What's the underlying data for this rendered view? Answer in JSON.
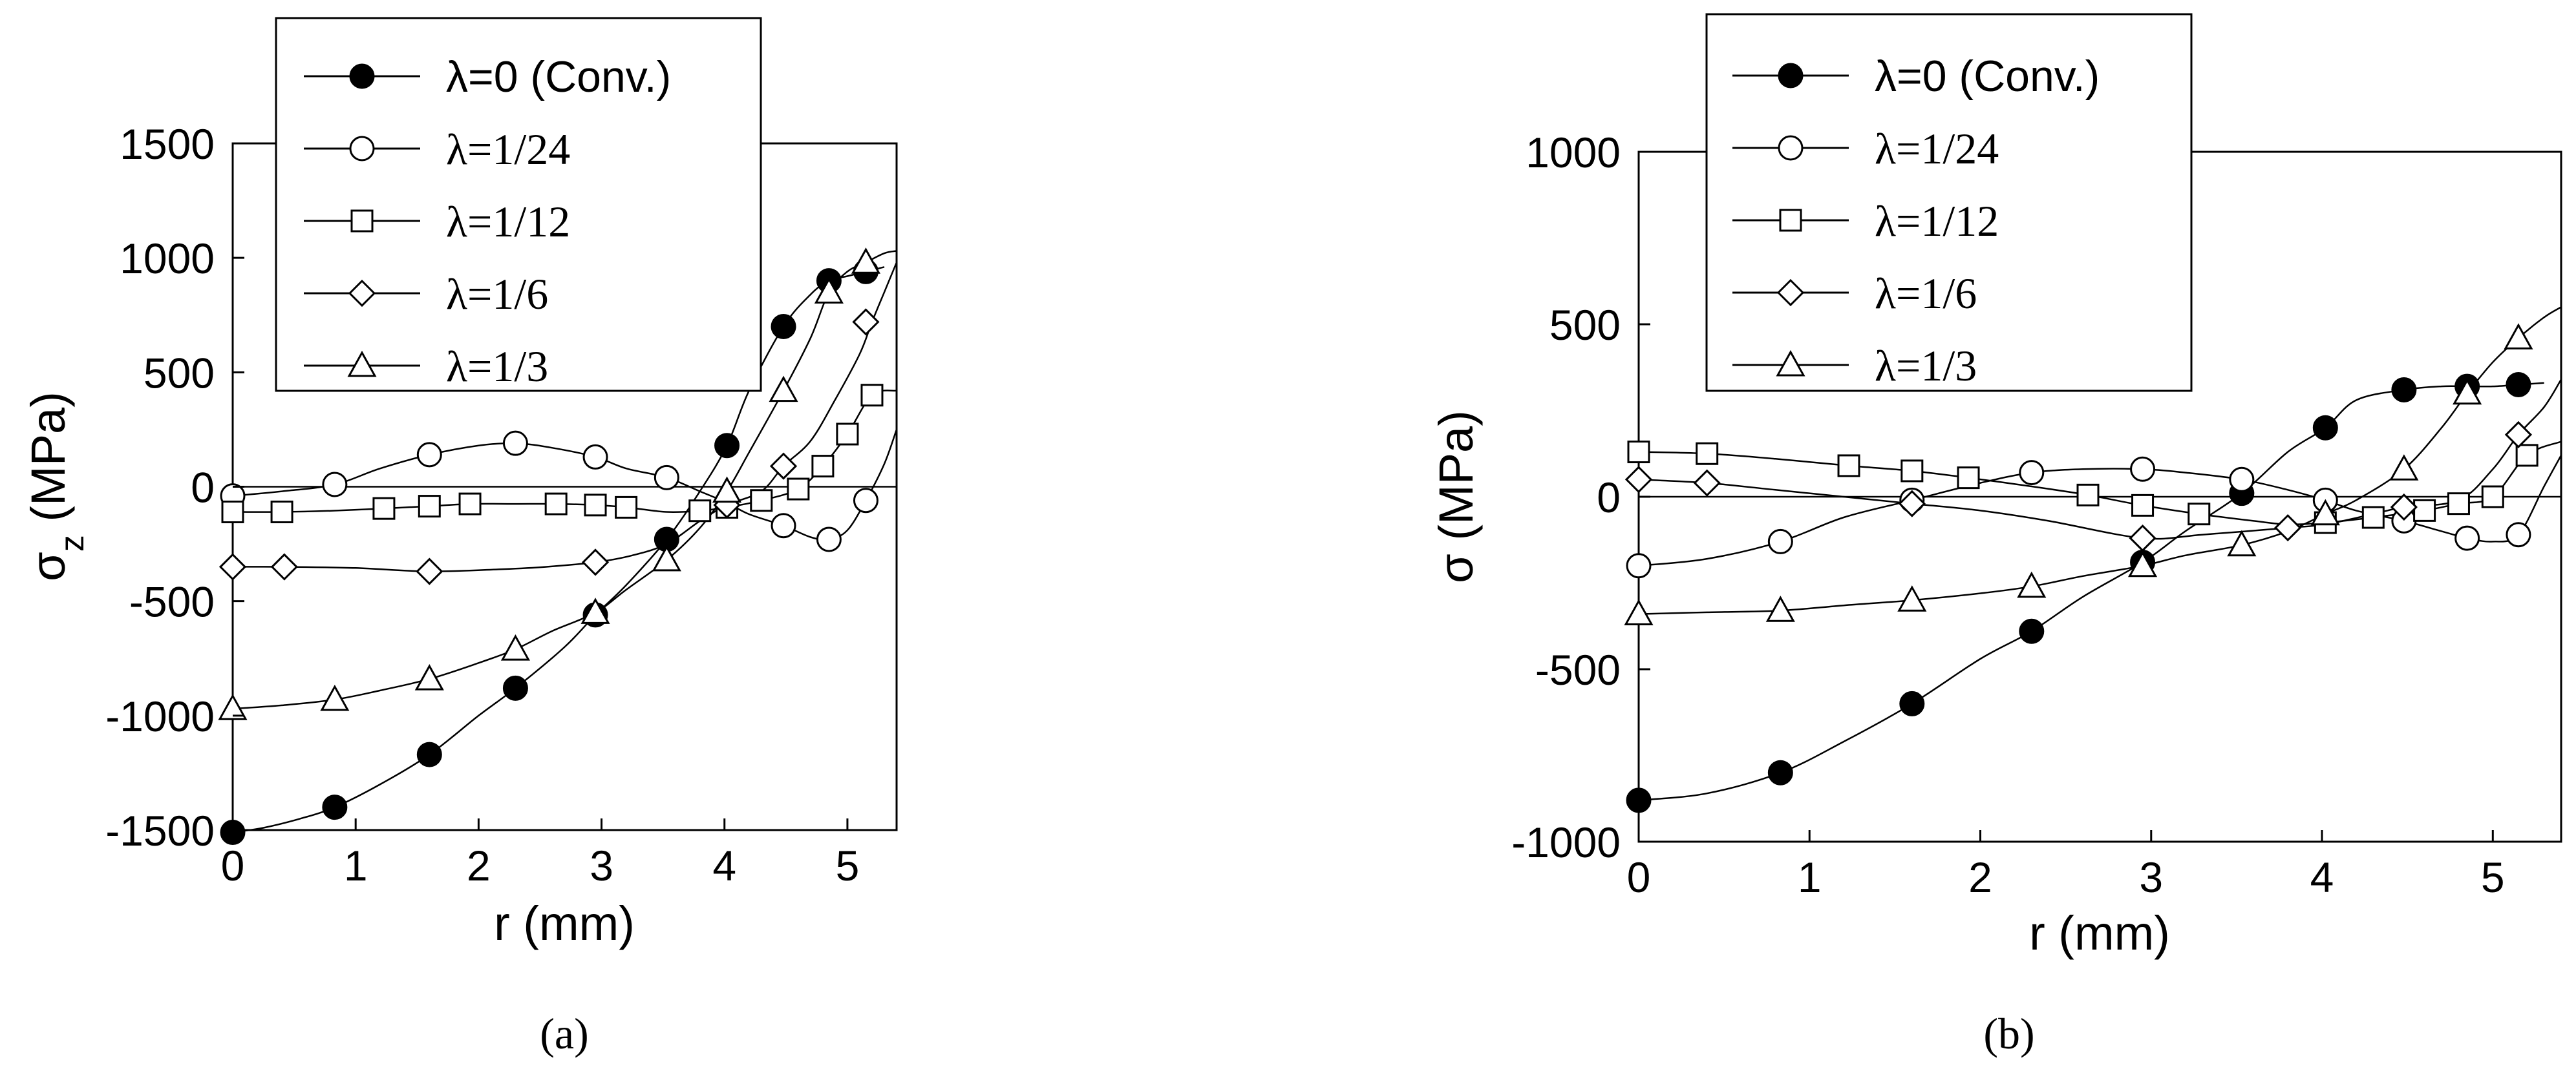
{
  "chart_data": [
    {
      "type": "line",
      "panel_label": "(a)",
      "xlabel": "r (mm)",
      "ylabel_main": "σ",
      "ylabel_sub": "z",
      "ylabel_rest": " (MPa)",
      "xlim": [
        0,
        5.4
      ],
      "ylim": [
        -1500,
        1500
      ],
      "xticks": [
        0,
        1,
        2,
        3,
        4,
        5
      ],
      "yticks": [
        -1500,
        -1000,
        -500,
        0,
        500,
        1000,
        1500
      ],
      "xtick_labels": [
        "0",
        "1",
        "2",
        "3",
        "4",
        "5"
      ],
      "ytick_labels": [
        "-1500",
        "-1000",
        "-500",
        "0",
        "500",
        "1000",
        "1500"
      ],
      "zero_line": true,
      "legend_position": "top-left",
      "series": [
        {
          "name": "λ=0 (Conv.)",
          "marker": "filled-circle",
          "x": [
            0,
            0.25,
            0.55,
            0.83,
            1.2,
            1.6,
            2.0,
            2.3,
            2.7,
            2.95,
            3.2,
            3.53,
            3.8,
            4.02,
            4.2,
            4.48,
            4.7,
            4.85,
            5.0,
            5.15,
            5.3
          ],
          "y": [
            -1510,
            -1490,
            -1450,
            -1400,
            -1300,
            -1170,
            -1000,
            -880,
            -700,
            -560,
            -430,
            -230,
            -20,
            180,
            420,
            700,
            840,
            900,
            920,
            940,
            960
          ],
          "marker_x": [
            0,
            0.83,
            1.6,
            2.3,
            2.95,
            3.53,
            4.02,
            4.48,
            4.85,
            5.15
          ],
          "marker_y": [
            -1510,
            -1400,
            -1170,
            -880,
            -560,
            -230,
            180,
            700,
            900,
            940
          ]
        },
        {
          "name": "λ=1/24",
          "marker": "open-circle",
          "x": [
            0,
            0.4,
            0.83,
            1.2,
            1.6,
            2.0,
            2.3,
            2.6,
            2.95,
            3.2,
            3.53,
            3.8,
            4.02,
            4.2,
            4.48,
            4.7,
            4.85,
            5.0,
            5.15,
            5.3,
            5.4
          ],
          "y": [
            -40,
            -20,
            10,
            80,
            140,
            180,
            190,
            170,
            130,
            80,
            40,
            -20,
            -70,
            -120,
            -170,
            -220,
            -230,
            -190,
            -60,
            100,
            250
          ],
          "marker_x": [
            0,
            0.83,
            1.6,
            2.3,
            2.95,
            3.53,
            4.48,
            4.85,
            5.15
          ],
          "marker_y": [
            -40,
            10,
            140,
            190,
            130,
            40,
            -170,
            -230,
            -60
          ]
        },
        {
          "name": "λ=1/12",
          "marker": "open-square",
          "x": [
            0,
            0.4,
            0.8,
            1.23,
            1.6,
            1.93,
            2.3,
            2.63,
            2.95,
            3.2,
            3.53,
            3.8,
            4.02,
            4.3,
            4.6,
            4.8,
            5.0,
            5.2,
            5.4
          ],
          "y": [
            -110,
            -110,
            -105,
            -95,
            -85,
            -75,
            -75,
            -75,
            -80,
            -90,
            -110,
            -105,
            -90,
            -60,
            -10,
            90,
            230,
            400,
            420
          ],
          "marker_x": [
            0,
            0.4,
            1.23,
            1.6,
            1.93,
            2.63,
            2.95,
            3.2,
            3.8,
            4.02,
            4.3,
            4.6,
            4.8,
            5.0,
            5.2
          ],
          "marker_y": [
            -110,
            -110,
            -95,
            -85,
            -75,
            -75,
            -80,
            -90,
            -105,
            -90,
            -60,
            -10,
            90,
            230,
            400
          ]
        },
        {
          "name": "λ=1/6",
          "marker": "open-diamond",
          "x": [
            0,
            0.42,
            1.0,
            1.6,
            2.2,
            2.55,
            2.95,
            3.25,
            3.53,
            3.8,
            4.02,
            4.3,
            4.48,
            4.7,
            4.9,
            5.1,
            5.2,
            5.3,
            5.4
          ],
          "y": [
            -350,
            -350,
            -355,
            -370,
            -360,
            -350,
            -330,
            -300,
            -250,
            -150,
            -80,
            -20,
            90,
            200,
            380,
            580,
            720,
            850,
            980
          ],
          "marker_x": [
            0,
            0.42,
            1.6,
            2.95,
            4.02,
            4.48,
            5.15
          ],
          "marker_y": [
            -350,
            -350,
            -370,
            -330,
            -80,
            90,
            720
          ]
        },
        {
          "name": "λ=1/3",
          "marker": "open-triangle",
          "x": [
            0,
            0.4,
            0.83,
            1.2,
            1.6,
            2.0,
            2.3,
            2.6,
            2.95,
            3.2,
            3.53,
            3.8,
            4.02,
            4.2,
            4.48,
            4.7,
            4.85,
            5.0,
            5.15,
            5.3,
            5.4
          ],
          "y": [
            -970,
            -955,
            -930,
            -890,
            -840,
            -770,
            -710,
            -630,
            -550,
            -450,
            -320,
            -180,
            -20,
            150,
            420,
            650,
            850,
            940,
            980,
            1020,
            1030
          ],
          "marker_x": [
            0,
            0.83,
            1.6,
            2.3,
            2.95,
            3.53,
            4.02,
            4.48,
            4.85,
            5.15
          ],
          "marker_y": [
            -970,
            -930,
            -840,
            -710,
            -550,
            -320,
            -20,
            420,
            850,
            980
          ]
        }
      ]
    },
    {
      "type": "line",
      "panel_label": "(b)",
      "xlabel": "r (mm)",
      "ylabel_main": "σ",
      "ylabel_sub": "",
      "ylabel_rest": " (MPa)",
      "xlim": [
        0,
        5.4
      ],
      "ylim": [
        -1000,
        1000
      ],
      "xticks": [
        0,
        1,
        2,
        3,
        4,
        5
      ],
      "yticks": [
        -1000,
        -500,
        0,
        500,
        1000
      ],
      "xtick_labels": [
        "0",
        "1",
        "2",
        "3",
        "4",
        "5"
      ],
      "ytick_labels": [
        "-1000",
        "-500",
        "0",
        "500",
        "1000"
      ],
      "zero_line": true,
      "legend_position": "top-left",
      "series": [
        {
          "name": "λ=0 (Conv.)",
          "marker": "filled-circle",
          "x": [
            0,
            0.4,
            0.83,
            1.2,
            1.6,
            2.0,
            2.3,
            2.6,
            2.95,
            3.2,
            3.53,
            3.8,
            4.02,
            4.2,
            4.48,
            4.7,
            4.85,
            5.0,
            5.15,
            5.3
          ],
          "y": [
            -880,
            -860,
            -800,
            -710,
            -600,
            -470,
            -390,
            -290,
            -190,
            -100,
            10,
            130,
            200,
            280,
            310,
            320,
            320,
            320,
            325,
            330
          ],
          "marker_x": [
            0,
            0.83,
            1.6,
            2.3,
            2.95,
            3.53,
            4.02,
            4.48,
            4.85,
            5.15
          ],
          "marker_y": [
            -880,
            -800,
            -600,
            -390,
            -190,
            10,
            200,
            310,
            320,
            325
          ]
        },
        {
          "name": "λ=1/24",
          "marker": "open-circle",
          "x": [
            0,
            0.4,
            0.83,
            1.2,
            1.6,
            2.0,
            2.3,
            2.6,
            2.95,
            3.2,
            3.53,
            3.8,
            4.02,
            4.2,
            4.48,
            4.7,
            4.85,
            5.0,
            5.15,
            5.3,
            5.4
          ],
          "y": [
            -200,
            -180,
            -130,
            -60,
            -10,
            40,
            70,
            80,
            80,
            70,
            50,
            20,
            -10,
            -40,
            -70,
            -100,
            -120,
            -130,
            -110,
            30,
            120
          ],
          "marker_x": [
            0,
            0.83,
            1.6,
            2.3,
            2.95,
            3.53,
            4.02,
            4.48,
            4.85,
            5.15
          ],
          "marker_y": [
            -200,
            -130,
            -10,
            70,
            80,
            50,
            -10,
            -70,
            -120,
            -110
          ]
        },
        {
          "name": "λ=1/12",
          "marker": "open-square",
          "x": [
            0,
            0.4,
            0.8,
            1.23,
            1.6,
            1.93,
            2.3,
            2.63,
            2.95,
            3.28,
            3.6,
            3.8,
            4.02,
            4.3,
            4.6,
            4.8,
            5.0,
            5.2,
            5.4
          ],
          "y": [
            130,
            125,
            110,
            90,
            75,
            55,
            30,
            5,
            -25,
            -50,
            -70,
            -80,
            -75,
            -60,
            -40,
            -20,
            0,
            120,
            160
          ],
          "marker_x": [
            0,
            0.4,
            1.23,
            1.6,
            1.93,
            2.63,
            2.95,
            3.28,
            4.02,
            4.3,
            4.6,
            4.8,
            5.0,
            5.2
          ],
          "marker_y": [
            130,
            125,
            90,
            75,
            55,
            5,
            -25,
            -50,
            -75,
            -60,
            -40,
            -20,
            0,
            120
          ]
        },
        {
          "name": "λ=1/6",
          "marker": "open-diamond",
          "x": [
            0,
            0.4,
            0.8,
            1.2,
            1.6,
            2.0,
            2.4,
            2.95,
            3.3,
            3.8,
            4.02,
            4.3,
            4.48,
            4.8,
            5.0,
            5.15,
            5.3,
            5.4
          ],
          "y": [
            50,
            40,
            20,
            0,
            -20,
            -40,
            -70,
            -120,
            -110,
            -90,
            -80,
            -50,
            -30,
            -10,
            80,
            180,
            260,
            340
          ],
          "marker_x": [
            0,
            0.4,
            1.6,
            2.95,
            3.8,
            4.48,
            5.15
          ],
          "marker_y": [
            50,
            40,
            -20,
            -120,
            -90,
            -30,
            180
          ]
        },
        {
          "name": "λ=1/3",
          "marker": "open-triangle",
          "x": [
            0,
            0.4,
            0.83,
            1.2,
            1.6,
            2.0,
            2.3,
            2.6,
            2.95,
            3.2,
            3.53,
            3.8,
            4.02,
            4.2,
            4.48,
            4.7,
            4.85,
            5.0,
            5.15,
            5.3,
            5.4
          ],
          "y": [
            -340,
            -335,
            -330,
            -315,
            -300,
            -280,
            -260,
            -230,
            -200,
            -170,
            -140,
            -100,
            -50,
            -10,
            80,
            200,
            300,
            390,
            460,
            520,
            550
          ],
          "marker_x": [
            0,
            0.83,
            1.6,
            2.3,
            2.95,
            3.53,
            4.02,
            4.48,
            4.85,
            5.15
          ],
          "marker_y": [
            -340,
            -330,
            -300,
            -260,
            -200,
            -140,
            -50,
            80,
            300,
            460
          ]
        }
      ]
    }
  ]
}
